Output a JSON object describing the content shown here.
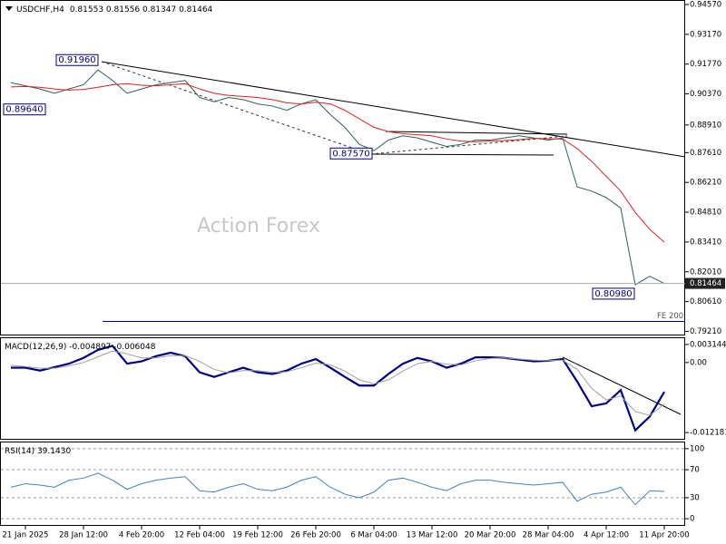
{
  "chart_data": [
    {
      "type": "line",
      "title": "USDCHF,H4",
      "subtitle": "0.81553 0.81556 0.81347 0.81464",
      "watermark": "Action Forex",
      "ylim": [
        0.7906,
        0.9474
      ],
      "yticks": [
        {
          "value": 0.9457,
          "label": "0.94570"
        },
        {
          "value": 0.9317,
          "label": "0.93170"
        },
        {
          "value": 0.9177,
          "label": "0.91770"
        },
        {
          "value": 0.9037,
          "label": "0.90370"
        },
        {
          "value": 0.8891,
          "label": "0.88910"
        },
        {
          "value": 0.8761,
          "label": "0.87610"
        },
        {
          "value": 0.8621,
          "label": "0.86210"
        },
        {
          "value": 0.8481,
          "label": "0.84810"
        },
        {
          "value": 0.8341,
          "label": "0.83410"
        },
        {
          "value": 0.8201,
          "label": "0.82010"
        },
        {
          "value": 0.8061,
          "label": "0.80610"
        },
        {
          "value": 0.7921,
          "label": "0.79210"
        }
      ],
      "series": [
        {
          "name": "USDCHF",
          "color": "#2f5f5f",
          "values": [
            0.909,
            0.9075,
            0.906,
            0.904,
            0.906,
            0.908,
            0.915,
            0.91,
            0.904,
            0.906,
            0.908,
            0.909,
            0.91,
            0.902,
            0.9,
            0.902,
            0.901,
            0.899,
            0.898,
            0.896,
            0.899,
            0.901,
            0.894,
            0.888,
            0.88,
            0.877,
            0.882,
            0.884,
            0.883,
            0.881,
            0.879,
            0.88,
            0.882,
            0.882,
            0.883,
            0.884,
            0.883,
            0.882,
            0.883,
            0.86,
            0.858,
            0.855,
            0.85,
            0.814,
            0.818,
            0.8146
          ]
        },
        {
          "name": "MA",
          "color": "#e02020",
          "values": [
            0.907,
            0.9072,
            0.9068,
            0.906,
            0.9055,
            0.9058,
            0.9068,
            0.908,
            0.9085,
            0.9078,
            0.9075,
            0.908,
            0.9085,
            0.906,
            0.904,
            0.903,
            0.9025,
            0.902,
            0.901,
            0.8995,
            0.899,
            0.8998,
            0.899,
            0.896,
            0.892,
            0.888,
            0.886,
            0.885,
            0.8845,
            0.884,
            0.8825,
            0.8815,
            0.8812,
            0.8815,
            0.8818,
            0.8822,
            0.8828,
            0.8826,
            0.8825,
            0.878,
            0.872,
            0.865,
            0.858,
            0.848,
            0.84,
            0.834
          ]
        }
      ],
      "annotations": [
        {
          "value": 0.9196,
          "label": "0.91960"
        },
        {
          "value": 0.8964,
          "label": "0.89640"
        },
        {
          "value": 0.8757,
          "label": "0.87570"
        },
        {
          "value": 0.8098,
          "label": "0.80980"
        },
        {
          "value": 0.7968,
          "label": "FE 200"
        }
      ],
      "last_price": {
        "value": 0.81464,
        "label": "0.81464"
      }
    },
    {
      "type": "line",
      "title": "MACD(12,26,9) -0.004897 -0.006048",
      "ylim": [
        -0.013265,
        0.00423
      ],
      "yticks": [
        0.003144,
        {
          "value": 0,
          "label": "0.00"
        },
        -0.012181
      ],
      "series": [
        {
          "name": "MACD",
          "color": "#000080",
          "values": [
            -0.0009,
            -0.0009,
            -0.0014,
            -0.0008,
            -0.0002,
            0.0008,
            0.0022,
            0.0029,
            -0.0002,
            0.0002,
            0.0011,
            0.0017,
            0.0011,
            -0.0017,
            -0.0025,
            -0.0017,
            -0.0009,
            -0.0017,
            -0.002,
            -0.0014,
            -0.0002,
            0.0006,
            -0.0009,
            -0.0025,
            -0.004,
            -0.004,
            -0.002,
            -0.0002,
            0.0008,
            0.0002,
            -0.0009,
            -0.0002,
            0.0009,
            0.0009,
            0.0008,
            0.0005,
            0.0002,
            0.0003,
            0.0006,
            -0.0033,
            -0.0076,
            -0.0071,
            -0.0048,
            -0.0118,
            -0.0094,
            -0.0051
          ]
        },
        {
          "name": "Signal",
          "color": "#a0a0a0",
          "values": [
            -0.0005,
            -0.0007,
            -0.001,
            -0.001,
            -0.0006,
            0.0,
            0.001,
            0.002,
            0.0015,
            0.0008,
            0.0008,
            0.0012,
            0.0012,
            0.0002,
            -0.0012,
            -0.0018,
            -0.0014,
            -0.0014,
            -0.0017,
            -0.0016,
            -0.0009,
            -0.0001,
            -0.0004,
            -0.0015,
            -0.003,
            -0.0037,
            -0.003,
            -0.0015,
            -0.0002,
            0.0002,
            -0.0003,
            -0.0004,
            0.0003,
            0.0007,
            0.0008,
            0.0006,
            0.0004,
            0.0003,
            0.0004,
            -0.0012,
            -0.0045,
            -0.0065,
            -0.0058,
            -0.0085,
            -0.0092,
            -0.0072
          ]
        }
      ]
    },
    {
      "type": "line",
      "title": "RSI(14) 39.1430",
      "ylim": [
        -8.9,
        108.9
      ],
      "yticks": [
        100,
        70,
        30,
        0
      ],
      "grid": true,
      "categories": [
        null,
        "21 Jan 2025",
        null,
        null,
        null,
        "28 Jan 12:00",
        null,
        null,
        null,
        "4 Feb 20:00",
        null,
        null,
        null,
        "12 Feb 04:00",
        null,
        null,
        null,
        "19 Feb 12:00",
        null,
        null,
        null,
        "26 Feb 20:00",
        null,
        null,
        null,
        "6 Mar 04:00",
        null,
        null,
        null,
        "13 Mar 12:00",
        null,
        null,
        null,
        "20 Mar 20:00",
        null,
        null,
        null,
        "28 Mar 04:00",
        null,
        null,
        null,
        "4 Apr 12:00",
        null,
        null,
        null,
        "11 Apr 20:00"
      ],
      "series": [
        {
          "name": "RSI",
          "color": "#4682b4",
          "values": [
            45,
            50,
            48,
            45,
            55,
            58,
            65,
            55,
            42,
            50,
            55,
            58,
            60,
            40,
            38,
            45,
            50,
            42,
            40,
            45,
            55,
            60,
            45,
            35,
            30,
            38,
            55,
            58,
            52,
            45,
            40,
            50,
            55,
            55,
            52,
            50,
            48,
            50,
            52,
            25,
            35,
            38,
            45,
            20,
            40,
            39
          ]
        }
      ]
    }
  ]
}
